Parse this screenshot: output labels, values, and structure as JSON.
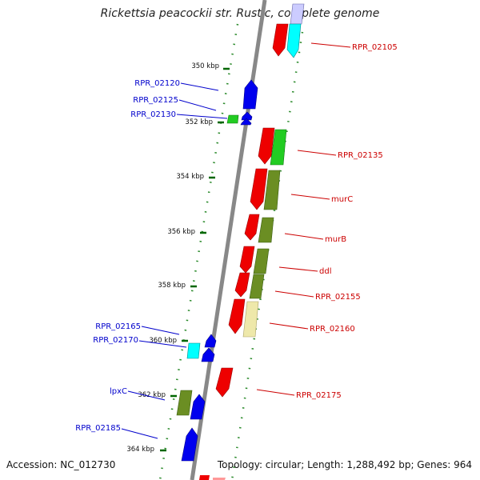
{
  "title": "Rickettsia peacockii str. Rustic, complete genome",
  "footer": {
    "accession": "Accession: NC_012730",
    "stats": "Topology: circular; Length: 1,288,492 bp; Genes: 964"
  },
  "colors": {
    "red": "#ee0000",
    "cyan": "#00ffff",
    "blue": "#0000ee",
    "green": "#22cc22",
    "olive": "#6b8e23",
    "khaki": "#eee8aa",
    "lavender": "#ccccff",
    "pink": "#ff9999",
    "backbone": "#888888",
    "tick": "#006600",
    "label_blue": "#0000cc",
    "label_red": "#cc0000"
  },
  "scale_ticks": [
    {
      "label": "350 kbp"
    },
    {
      "label": "352 kbp"
    },
    {
      "label": "354 kbp"
    },
    {
      "label": "356 kbp"
    },
    {
      "label": "358 kbp"
    },
    {
      "label": "360 kbp"
    },
    {
      "label": "362 kbp"
    },
    {
      "label": "364 kbp"
    }
  ],
  "left_labels": [
    "RPR_02120",
    "RPR_02125",
    "RPR_02130",
    "RPR_02165",
    "RPR_02170",
    "lpxC",
    "RPR_02185"
  ],
  "right_labels": [
    "RPR_02105",
    "RPR_02135",
    "murC",
    "murB",
    "ddl",
    "RPR_02155",
    "RPR_02160",
    "RPR_02175"
  ]
}
